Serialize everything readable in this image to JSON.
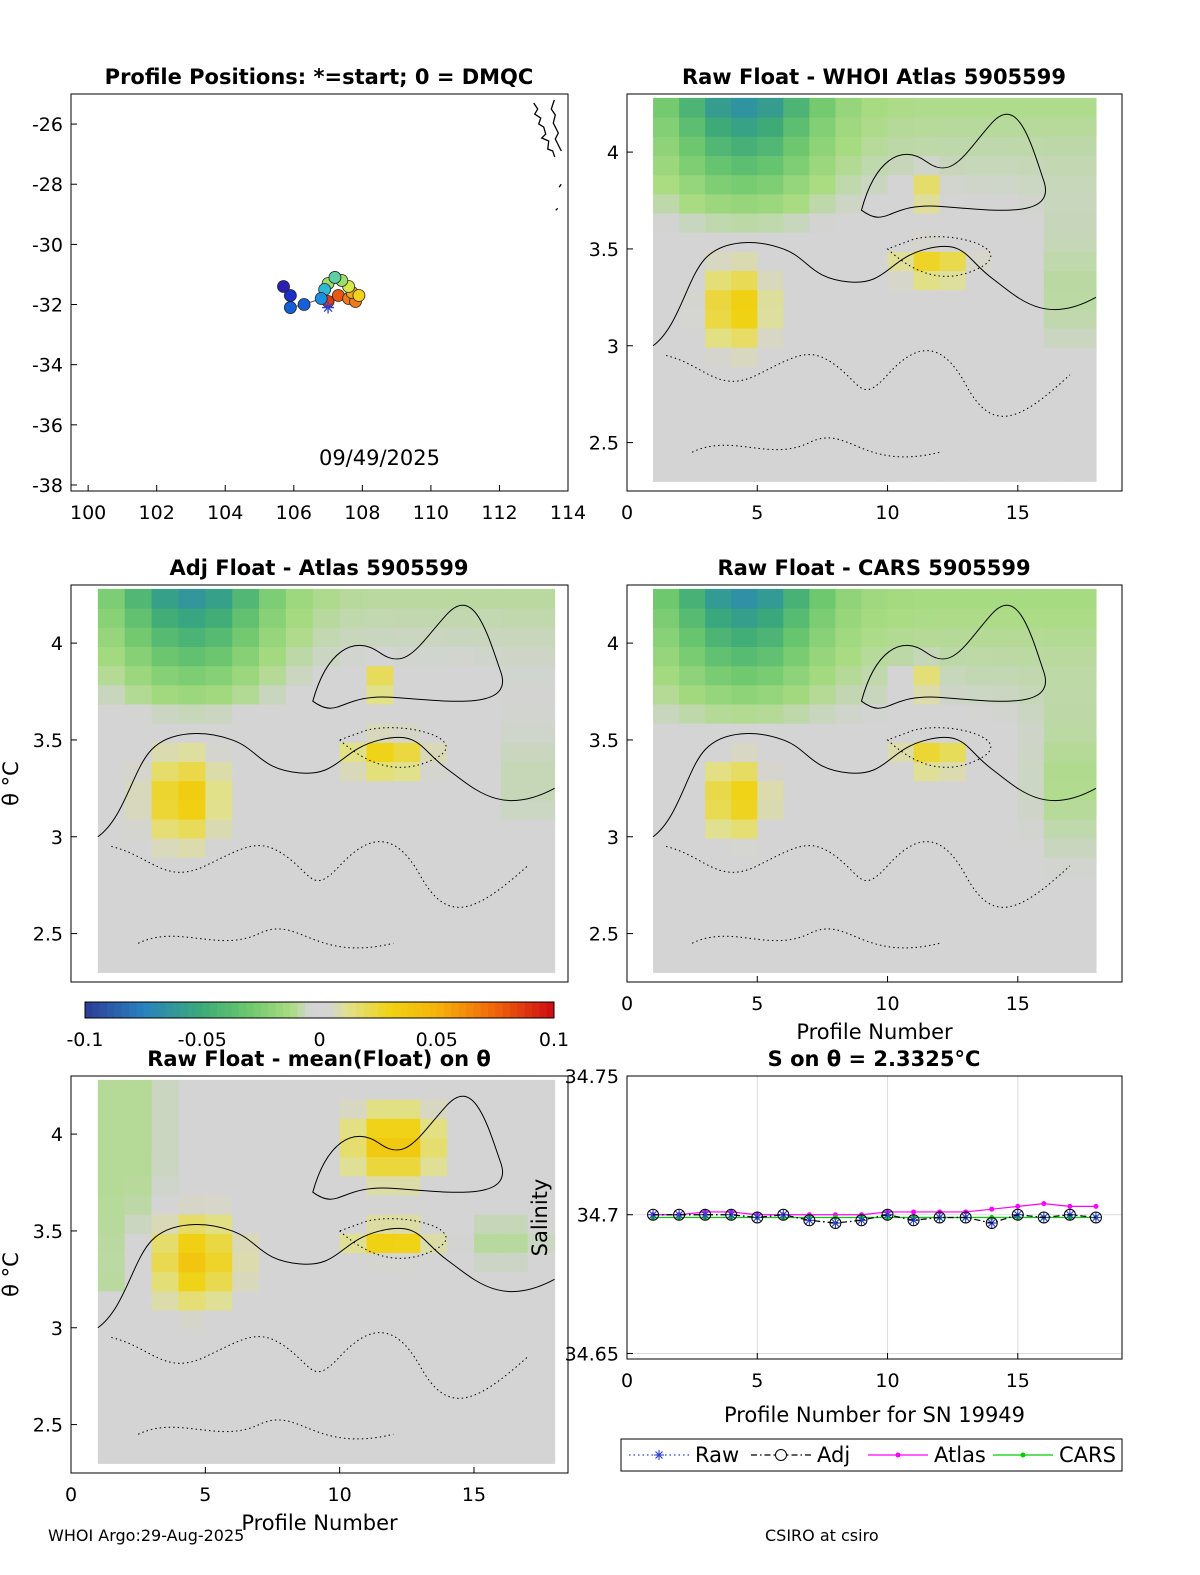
{
  "colors": {
    "map_markers": [
      "#e03a10",
      "#e85a14",
      "#f07a1a",
      "#f5a623",
      "#f3d21c",
      "#d8e84a",
      "#9ede6a",
      "#5cd0a0",
      "#2fb8d6",
      "#1a8fe0",
      "#1560d8",
      "#1a2fc8",
      "#2a20b0"
    ],
    "raw_marker": "#2b3fd6",
    "adj_marker": "#000000",
    "atlas_line": "#ff00ff",
    "cars_line": "#00cc00",
    "grid": "#dddddd"
  },
  "footer": {
    "left": "WHOI Argo:29-Aug-2025",
    "right": "CSIRO at csiro"
  },
  "colorbar": {
    "ticks": [
      "-0.1",
      "-0.05",
      "0",
      "0.05",
      "0.1"
    ],
    "range": [
      -0.1,
      0.1
    ]
  },
  "chart_data": [
    {
      "type": "scatter",
      "title": "Profile Positions: *=start; 0 = DMQC",
      "annotation": "09/49/2025",
      "xlim": [
        99.5,
        114
      ],
      "ylim": [
        -38.2,
        -25
      ],
      "xticks": [
        "100",
        "102",
        "104",
        "106",
        "108",
        "110",
        "112",
        "114"
      ],
      "yticks": [
        "-26",
        "-28",
        "-30",
        "-32",
        "-34",
        "-36",
        "-38"
      ],
      "start": {
        "lon": 107.0,
        "lat": -32.1
      },
      "points": [
        {
          "lon": 107.0,
          "lat": -31.9
        },
        {
          "lon": 107.3,
          "lat": -31.7
        },
        {
          "lon": 107.6,
          "lat": -31.8
        },
        {
          "lon": 107.8,
          "lat": -31.9
        },
        {
          "lon": 107.7,
          "lat": -31.6
        },
        {
          "lon": 107.9,
          "lat": -31.7
        },
        {
          "lon": 107.6,
          "lat": -31.4
        },
        {
          "lon": 107.4,
          "lat": -31.2
        },
        {
          "lon": 107.0,
          "lat": -31.3
        },
        {
          "lon": 107.2,
          "lat": -31.1
        },
        {
          "lon": 106.9,
          "lat": -31.5
        },
        {
          "lon": 106.8,
          "lat": -31.8
        },
        {
          "lon": 106.3,
          "lat": -32.0
        },
        {
          "lon": 105.9,
          "lat": -32.1
        },
        {
          "lon": 105.9,
          "lat": -31.7
        },
        {
          "lon": 105.7,
          "lat": -31.4
        }
      ]
    },
    {
      "type": "heatmap",
      "title": "Raw Float - WHOI Atlas  5905599",
      "xlim": [
        0,
        19
      ],
      "ylim": [
        2.25,
        4.3
      ],
      "xticks": [
        "0",
        "5",
        "10",
        "15"
      ],
      "yticks": [
        "2.5",
        "3",
        "3.5",
        "4"
      ]
    },
    {
      "type": "heatmap",
      "title": "Adj Float - Atlas  5905599",
      "ylabel": "θ °C",
      "xlim": [
        0,
        18.5
      ],
      "ylim": [
        2.25,
        4.3
      ],
      "xticks": [],
      "yticks": [
        "2.5",
        "3",
        "3.5",
        "4"
      ]
    },
    {
      "type": "heatmap",
      "title": "Raw Float - CARS  5905599",
      "xlabel": "Profile Number",
      "xlim": [
        0,
        19
      ],
      "ylim": [
        2.25,
        4.3
      ],
      "xticks": [
        "0",
        "5",
        "10",
        "15"
      ],
      "yticks": [
        "2.5",
        "3",
        "3.5",
        "4"
      ]
    },
    {
      "type": "heatmap",
      "title": "Raw Float - mean(Float) on θ",
      "xlabel": "Profile Number",
      "ylabel": "θ °C",
      "xlim": [
        0,
        18.5
      ],
      "ylim": [
        2.25,
        4.3
      ],
      "xticks": [
        "0",
        "5",
        "10",
        "15"
      ],
      "yticks": [
        "2.5",
        "3",
        "3.5",
        "4"
      ]
    },
    {
      "type": "line",
      "title": "S on θ = 2.3325°C",
      "xlabel": "Profile Number for SN 19949",
      "ylabel": "Salinity",
      "xlim": [
        0,
        19
      ],
      "ylim": [
        34.648,
        34.75
      ],
      "xticks": [
        "0",
        "5",
        "10",
        "15"
      ],
      "yticks": [
        "34.65",
        "34.7",
        "34.75"
      ],
      "legend": [
        "Raw",
        "Adj",
        "Atlas",
        "CARS"
      ],
      "x": [
        1,
        2,
        3,
        4,
        5,
        6,
        7,
        8,
        9,
        10,
        11,
        12,
        13,
        14,
        15,
        16,
        17,
        18
      ],
      "series": [
        {
          "name": "Raw",
          "values": [
            34.7,
            34.7,
            34.7,
            34.7,
            34.699,
            34.7,
            34.698,
            34.697,
            34.698,
            34.7,
            34.698,
            34.699,
            34.699,
            34.697,
            34.7,
            34.699,
            34.7,
            34.699
          ]
        },
        {
          "name": "Adj",
          "values": [
            34.7,
            34.7,
            34.7,
            34.7,
            34.699,
            34.7,
            34.698,
            34.697,
            34.698,
            34.7,
            34.698,
            34.699,
            34.699,
            34.697,
            34.7,
            34.699,
            34.7,
            34.699
          ]
        },
        {
          "name": "Atlas",
          "values": [
            34.7,
            34.7,
            34.701,
            34.701,
            34.7,
            34.7,
            34.7,
            34.7,
            34.7,
            34.701,
            34.701,
            34.701,
            34.701,
            34.702,
            34.703,
            34.704,
            34.703,
            34.703
          ]
        },
        {
          "name": "CARS",
          "values": [
            34.699,
            34.699,
            34.699,
            34.699,
            34.699,
            34.699,
            34.699,
            34.699,
            34.699,
            34.699,
            34.699,
            34.699,
            34.699,
            34.699,
            34.699,
            34.699,
            34.699,
            34.699
          ]
        }
      ]
    }
  ]
}
